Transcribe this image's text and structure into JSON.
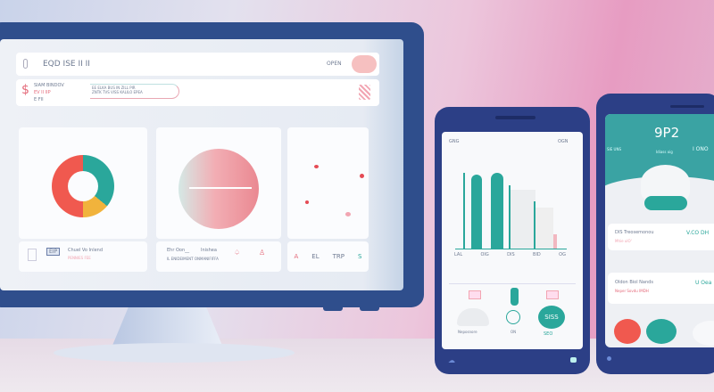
{
  "monitor": {
    "header": {
      "title": "EQD ISE II II",
      "right_label": "OPEN"
    },
    "banner": {
      "title": "SIAM BINDOV",
      "line1": "EV II IIP",
      "line2": "E FII",
      "progress_text": "EE ELKA BUS IN ZILL PIR",
      "progress_text2": "ZNTK TVS VISS KALILO EPEA"
    },
    "cards": [
      {
        "footer_title": "Chuel Vo Inlend",
        "footer_sub": "PENNIES FEE",
        "badge": "EIP"
      },
      {
        "footer_title": "Ehr Oon__",
        "footer_title2": "Inishea",
        "footer_sub": "IL ENIDEIMENT ONMANIFIFFA"
      },
      {
        "footer_items": [
          "A",
          "EL",
          "TRP",
          "S"
        ]
      }
    ],
    "donut": [
      {
        "color": "#f0594f",
        "value": 50
      },
      {
        "color": "#2aa79b",
        "value": 36
      },
      {
        "color": "#f1b33c",
        "value": 14
      }
    ]
  },
  "phone1": {
    "status_left": "GNG",
    "status_right": "OGN",
    "bars": [
      {
        "label": "LAL"
      },
      {
        "label": "OIG"
      },
      {
        "label": "DIS"
      },
      {
        "label": "BID"
      },
      {
        "label": "OG"
      }
    ],
    "bottom": {
      "left_label": "Neposnore",
      "center_label": "ON",
      "badge": "SISS",
      "pill": "SEO"
    }
  },
  "phone2": {
    "title": "9P2",
    "left_sub": "SIE UNS",
    "center_sub": "Idiass oig",
    "right_sub": "I ONO",
    "row1": {
      "title": "DIS Treosemonou",
      "value": "V.CO DH",
      "sub": "Mhie ulO'"
    },
    "row2": {
      "title": "Oldon Biol Nands",
      "value": "U Oea",
      "sub": "Neper Sovdu IMDH"
    }
  },
  "colors": {
    "frame": "#2f4e8c",
    "teal": "#2aa79b",
    "coral": "#f0594f",
    "pink": "#e79cc2"
  }
}
